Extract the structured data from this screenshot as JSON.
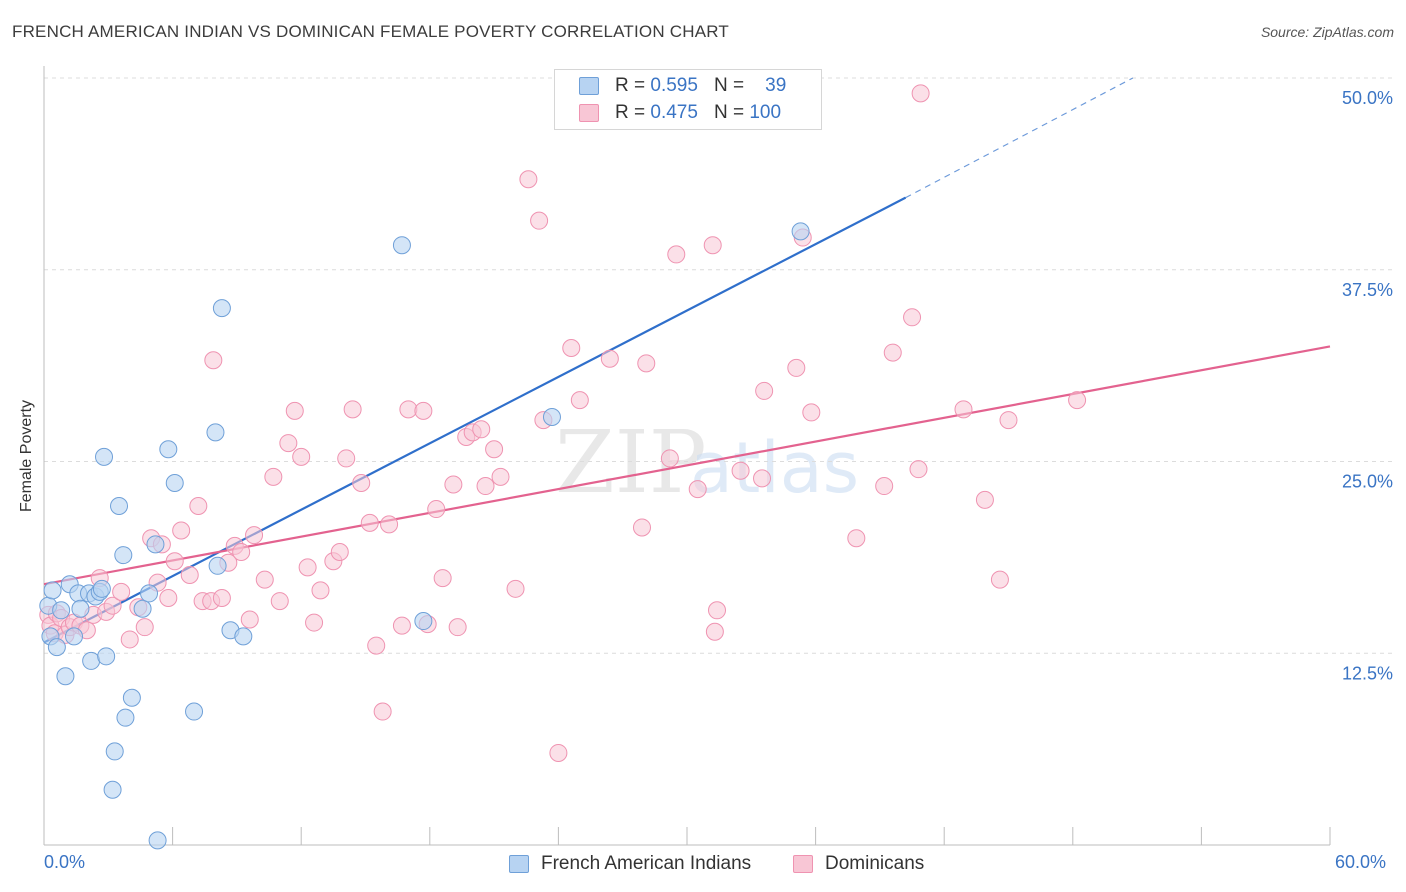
{
  "title": "FRENCH AMERICAN INDIAN VS DOMINICAN FEMALE POVERTY CORRELATION CHART",
  "source": "Source: ZipAtlas.com",
  "watermark": "ZIPatlas",
  "legend": {
    "row1": {
      "r_label": "R =",
      "r_value": "0.595",
      "n_label": "N =",
      "n_value": "39"
    },
    "row2": {
      "r_label": "R =",
      "r_value": "0.475",
      "n_label": "N =",
      "n_value": "100"
    }
  },
  "bottom_legend": {
    "series1": "French American Indians",
    "series2": "Dominicans"
  },
  "colors": {
    "blue_fill": "#b7d3f2",
    "blue_stroke": "#6fa0d8",
    "blue_line": "#2f6fcb",
    "pink_fill": "#f8c6d5",
    "pink_stroke": "#ef93b1",
    "pink_line": "#e3628f",
    "axis_label": "#3a74c4",
    "grid": "#dcdcdc"
  },
  "chart_data": {
    "type": "scatter",
    "title": "FRENCH AMERICAN INDIAN VS DOMINICAN FEMALE POVERTY CORRELATION CHART",
    "xlabel": "",
    "ylabel": "Female Poverty",
    "xlim": [
      0,
      60
    ],
    "ylim": [
      0,
      52
    ],
    "x_tick_labels": [
      "0.0%",
      "60.0%"
    ],
    "y_ticks": [
      12.5,
      25.0,
      37.5,
      50.0
    ],
    "y_tick_labels": [
      "12.5%",
      "25.0%",
      "37.5%",
      "50.0%"
    ],
    "grid": true,
    "series": [
      {
        "name": "French American Indians",
        "R": 0.595,
        "N": 39,
        "trend": {
          "x0": 0,
          "y0": 13.2,
          "x1": 40.2,
          "y1": 42.2,
          "dash_to_x": 50.8,
          "dash_to_y": 50.0
        },
        "points": [
          [
            0.2,
            15.6
          ],
          [
            0.3,
            13.6
          ],
          [
            0.4,
            16.6
          ],
          [
            0.6,
            12.9
          ],
          [
            0.8,
            15.3
          ],
          [
            1.0,
            11.0
          ],
          [
            1.2,
            17.0
          ],
          [
            1.4,
            13.6
          ],
          [
            1.6,
            16.4
          ],
          [
            1.7,
            15.4
          ],
          [
            2.1,
            16.4
          ],
          [
            2.2,
            12.0
          ],
          [
            2.4,
            16.2
          ],
          [
            2.6,
            16.5
          ],
          [
            2.7,
            16.7
          ],
          [
            2.8,
            25.3
          ],
          [
            2.9,
            12.3
          ],
          [
            3.2,
            3.6
          ],
          [
            3.3,
            6.1
          ],
          [
            3.5,
            22.1
          ],
          [
            3.7,
            18.9
          ],
          [
            3.8,
            8.3
          ],
          [
            4.1,
            9.6
          ],
          [
            4.6,
            15.4
          ],
          [
            4.9,
            16.4
          ],
          [
            5.2,
            19.6
          ],
          [
            5.3,
            0.3
          ],
          [
            5.8,
            25.8
          ],
          [
            6.1,
            23.6
          ],
          [
            7.0,
            8.7
          ],
          [
            8.0,
            26.9
          ],
          [
            8.1,
            18.2
          ],
          [
            8.3,
            35.0
          ],
          [
            8.7,
            14.0
          ],
          [
            9.3,
            13.6
          ],
          [
            16.7,
            39.1
          ],
          [
            17.7,
            14.6
          ],
          [
            23.7,
            27.9
          ],
          [
            35.3,
            40.0
          ]
        ]
      },
      {
        "name": "Dominicans",
        "R": 0.475,
        "N": 100,
        "trend": {
          "x0": 0,
          "y0": 17.0,
          "x1": 60,
          "y1": 32.5
        },
        "points": [
          [
            0.2,
            15.0
          ],
          [
            0.3,
            14.3
          ],
          [
            0.5,
            13.8
          ],
          [
            0.6,
            15.1
          ],
          [
            0.8,
            14.8
          ],
          [
            1.0,
            13.7
          ],
          [
            1.2,
            14.2
          ],
          [
            1.4,
            14.5
          ],
          [
            1.7,
            14.3
          ],
          [
            2.0,
            14.0
          ],
          [
            2.3,
            15.0
          ],
          [
            2.6,
            17.4
          ],
          [
            2.9,
            15.2
          ],
          [
            3.2,
            15.6
          ],
          [
            3.6,
            16.5
          ],
          [
            4.0,
            13.4
          ],
          [
            4.4,
            15.5
          ],
          [
            4.7,
            14.2
          ],
          [
            5.0,
            20.0
          ],
          [
            5.3,
            17.1
          ],
          [
            5.5,
            19.6
          ],
          [
            5.8,
            16.1
          ],
          [
            6.1,
            18.5
          ],
          [
            6.4,
            20.5
          ],
          [
            6.8,
            17.6
          ],
          [
            7.2,
            22.1
          ],
          [
            7.4,
            15.9
          ],
          [
            7.8,
            15.9
          ],
          [
            7.9,
            31.6
          ],
          [
            8.3,
            16.1
          ],
          [
            8.6,
            18.4
          ],
          [
            8.9,
            19.5
          ],
          [
            9.2,
            19.1
          ],
          [
            9.6,
            14.7
          ],
          [
            9.8,
            20.2
          ],
          [
            10.3,
            17.3
          ],
          [
            10.7,
            24.0
          ],
          [
            11.0,
            15.9
          ],
          [
            11.4,
            26.2
          ],
          [
            11.7,
            28.3
          ],
          [
            12.0,
            25.3
          ],
          [
            12.3,
            18.1
          ],
          [
            12.6,
            14.5
          ],
          [
            12.9,
            16.6
          ],
          [
            13.5,
            18.5
          ],
          [
            13.8,
            19.1
          ],
          [
            14.1,
            25.2
          ],
          [
            14.4,
            28.4
          ],
          [
            14.8,
            23.6
          ],
          [
            15.2,
            21.0
          ],
          [
            15.5,
            13.0
          ],
          [
            15.8,
            8.7
          ],
          [
            16.1,
            20.9
          ],
          [
            16.7,
            14.3
          ],
          [
            17.0,
            28.4
          ],
          [
            17.7,
            28.3
          ],
          [
            17.9,
            14.4
          ],
          [
            18.3,
            21.9
          ],
          [
            18.6,
            17.4
          ],
          [
            19.1,
            23.5
          ],
          [
            19.3,
            14.2
          ],
          [
            19.7,
            26.6
          ],
          [
            20.0,
            26.9
          ],
          [
            20.4,
            27.1
          ],
          [
            20.6,
            23.4
          ],
          [
            21.0,
            25.8
          ],
          [
            21.3,
            24.0
          ],
          [
            22.0,
            16.7
          ],
          [
            22.6,
            43.4
          ],
          [
            23.1,
            40.7
          ],
          [
            23.3,
            27.7
          ],
          [
            24.0,
            6.0
          ],
          [
            24.6,
            32.4
          ],
          [
            25.0,
            29.0
          ],
          [
            26.4,
            31.7
          ],
          [
            27.9,
            20.7
          ],
          [
            28.1,
            31.4
          ],
          [
            29.2,
            25.2
          ],
          [
            29.5,
            38.5
          ],
          [
            30.5,
            23.2
          ],
          [
            31.2,
            39.1
          ],
          [
            31.3,
            13.9
          ],
          [
            31.4,
            15.3
          ],
          [
            32.5,
            24.4
          ],
          [
            33.5,
            23.9
          ],
          [
            33.6,
            29.6
          ],
          [
            35.1,
            31.1
          ],
          [
            35.4,
            39.6
          ],
          [
            35.8,
            28.2
          ],
          [
            37.9,
            20.0
          ],
          [
            39.2,
            23.4
          ],
          [
            39.6,
            32.1
          ],
          [
            40.5,
            34.4
          ],
          [
            40.8,
            24.5
          ],
          [
            40.9,
            49.0
          ],
          [
            42.9,
            28.4
          ],
          [
            43.9,
            22.5
          ],
          [
            44.6,
            17.3
          ],
          [
            45.0,
            27.7
          ],
          [
            48.2,
            29.0
          ]
        ]
      }
    ]
  }
}
